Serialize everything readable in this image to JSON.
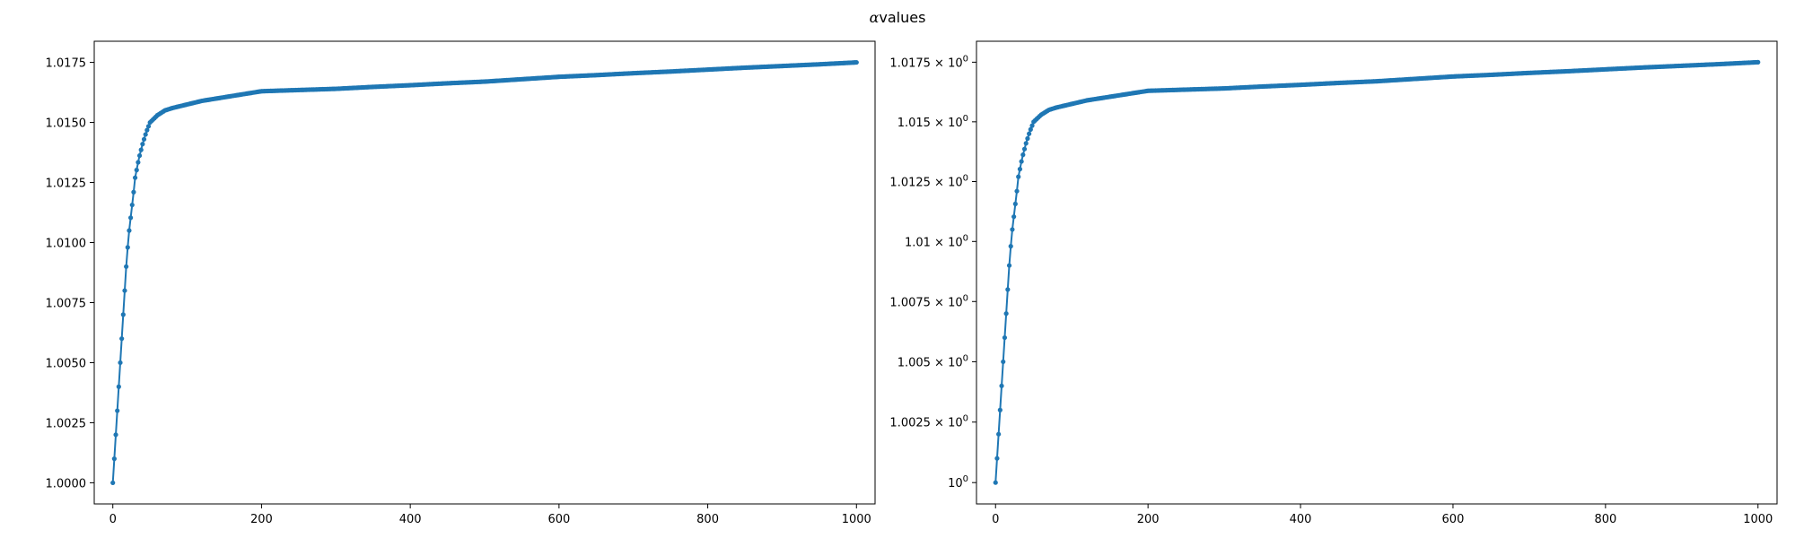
{
  "figure": {
    "title_symbol": "α",
    "title_text": "values"
  },
  "chart_data": [
    {
      "type": "line",
      "title": "",
      "xlabel": "",
      "ylabel": "",
      "xlim": [
        -25,
        1025
      ],
      "ylim": [
        0.99912,
        1.01838
      ],
      "yscale": "linear",
      "grid": false,
      "marker": "circle",
      "line_color": "#1f77b4",
      "x_ticks": [
        0,
        200,
        400,
        600,
        800,
        1000
      ],
      "x_tick_labels": [
        "0",
        "200",
        "400",
        "600",
        "800",
        "1000"
      ],
      "y_ticks": [
        1.0,
        1.0025,
        1.005,
        1.0075,
        1.01,
        1.0125,
        1.015,
        1.0175
      ],
      "y_tick_labels": [
        "1.0000",
        "1.0025",
        "1.0050",
        "1.0075",
        "1.0100",
        "1.0125",
        "1.0150",
        "1.0175"
      ],
      "series": [
        {
          "points": [
            [
              0,
              1.0
            ],
            [
              2,
              1.001
            ],
            [
              4,
              1.002
            ],
            [
              6,
              1.003
            ],
            [
              8,
              1.004
            ],
            [
              10,
              1.005
            ],
            [
              12,
              1.006
            ],
            [
              14,
              1.007
            ],
            [
              16,
              1.008
            ],
            [
              18,
              1.009
            ],
            [
              20,
              1.0098
            ],
            [
              22,
              1.0105
            ],
            [
              25,
              1.0113
            ],
            [
              28,
              1.0121
            ],
            [
              30,
              1.0127
            ],
            [
              35,
              1.0135
            ],
            [
              40,
              1.0141
            ],
            [
              45,
              1.0146
            ],
            [
              50,
              1.015
            ],
            [
              60,
              1.0153
            ],
            [
              70,
              1.0155
            ],
            [
              80,
              1.0156
            ],
            [
              100,
              1.01575
            ],
            [
              120,
              1.0159
            ],
            [
              140,
              1.016
            ],
            [
              160,
              1.0161
            ],
            [
              180,
              1.0162
            ],
            [
              200,
              1.0163
            ],
            [
              250,
              1.01635
            ],
            [
              300,
              1.0164
            ],
            [
              350,
              1.01648
            ],
            [
              400,
              1.01655
            ],
            [
              450,
              1.01663
            ],
            [
              500,
              1.0167
            ],
            [
              550,
              1.0168
            ],
            [
              600,
              1.0169
            ],
            [
              650,
              1.01697
            ],
            [
              700,
              1.01705
            ],
            [
              750,
              1.01712
            ],
            [
              800,
              1.0172
            ],
            [
              850,
              1.01728
            ],
            [
              900,
              1.01735
            ],
            [
              950,
              1.01742
            ],
            [
              1000,
              1.0175
            ]
          ]
        }
      ]
    },
    {
      "type": "line",
      "title": "",
      "xlabel": "",
      "ylabel": "",
      "xlim": [
        -25,
        1025
      ],
      "ylim": [
        0.99912,
        1.01838
      ],
      "yscale": "log",
      "grid": false,
      "marker": "circle",
      "line_color": "#1f77b4",
      "x_ticks": [
        0,
        200,
        400,
        600,
        800,
        1000
      ],
      "x_tick_labels": [
        "0",
        "200",
        "400",
        "600",
        "800",
        "1000"
      ],
      "y_ticks": [
        1.0,
        1.0025,
        1.005,
        1.0075,
        1.01,
        1.0125,
        1.015,
        1.0175
      ],
      "y_tick_labels": [
        "10^0",
        "1.0025 × 10^0",
        "1.005 × 10^0",
        "1.0075 × 10^0",
        "1.01 × 10^0",
        "1.0125 × 10^0",
        "1.015 × 10^0",
        "1.0175 × 10^0"
      ],
      "series": [
        {
          "points": [
            [
              0,
              1.0
            ],
            [
              2,
              1.001
            ],
            [
              4,
              1.002
            ],
            [
              6,
              1.003
            ],
            [
              8,
              1.004
            ],
            [
              10,
              1.005
            ],
            [
              12,
              1.006
            ],
            [
              14,
              1.007
            ],
            [
              16,
              1.008
            ],
            [
              18,
              1.009
            ],
            [
              20,
              1.0098
            ],
            [
              22,
              1.0105
            ],
            [
              25,
              1.0113
            ],
            [
              28,
              1.0121
            ],
            [
              30,
              1.0127
            ],
            [
              35,
              1.0135
            ],
            [
              40,
              1.0141
            ],
            [
              45,
              1.0146
            ],
            [
              50,
              1.015
            ],
            [
              60,
              1.0153
            ],
            [
              70,
              1.0155
            ],
            [
              80,
              1.0156
            ],
            [
              100,
              1.01575
            ],
            [
              120,
              1.0159
            ],
            [
              140,
              1.016
            ],
            [
              160,
              1.0161
            ],
            [
              180,
              1.0162
            ],
            [
              200,
              1.0163
            ],
            [
              250,
              1.01635
            ],
            [
              300,
              1.0164
            ],
            [
              350,
              1.01648
            ],
            [
              400,
              1.01655
            ],
            [
              450,
              1.01663
            ],
            [
              500,
              1.0167
            ],
            [
              550,
              1.0168
            ],
            [
              600,
              1.0169
            ],
            [
              650,
              1.01697
            ],
            [
              700,
              1.01705
            ],
            [
              750,
              1.01712
            ],
            [
              800,
              1.0172
            ],
            [
              850,
              1.01728
            ],
            [
              900,
              1.01735
            ],
            [
              950,
              1.01742
            ],
            [
              1000,
              1.0175
            ]
          ]
        }
      ]
    }
  ]
}
